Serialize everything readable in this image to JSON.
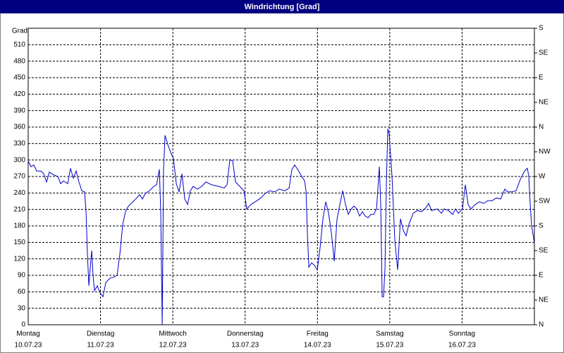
{
  "chart_data": {
    "type": "line",
    "title": "Windrichtung [Grad]",
    "y_label": "Grad",
    "x": [
      0,
      0.039,
      0.078,
      0.117,
      0.176,
      0.215,
      0.254,
      0.293,
      0.351,
      0.41,
      0.449,
      0.488,
      0.546,
      0.585,
      0.624,
      0.663,
      0.702,
      0.741,
      0.78,
      0.8,
      0.819,
      0.839,
      0.858,
      0.878,
      0.897,
      0.917,
      0.956,
      0.995,
      1.034,
      1.073,
      1.131,
      1.19,
      1.229,
      1.268,
      1.307,
      1.346,
      1.385,
      1.424,
      1.463,
      1.502,
      1.541,
      1.58,
      1.619,
      1.677,
      1.736,
      1.775,
      1.814,
      1.833,
      1.853,
      1.872,
      1.892,
      1.931,
      1.97,
      2.009,
      2.048,
      2.087,
      2.126,
      2.165,
      2.204,
      2.243,
      2.282,
      2.34,
      2.399,
      2.457,
      2.535,
      2.633,
      2.711,
      2.75,
      2.789,
      2.828,
      2.867,
      2.925,
      2.984,
      3.023,
      3.081,
      3.14,
      3.218,
      3.276,
      3.335,
      3.413,
      3.471,
      3.549,
      3.608,
      3.647,
      3.686,
      3.725,
      3.783,
      3.822,
      3.842,
      3.861,
      3.881,
      3.92,
      3.959,
      3.998,
      4.037,
      4.076,
      4.115,
      4.154,
      4.193,
      4.232,
      4.271,
      4.31,
      4.349,
      4.388,
      4.427,
      4.466,
      4.505,
      4.544,
      4.583,
      4.622,
      4.661,
      4.7,
      4.739,
      4.778,
      4.817,
      4.856,
      4.875,
      4.895,
      4.914,
      4.934,
      4.953,
      4.973,
      4.992,
      5.031,
      5.07,
      5.109,
      5.148,
      5.187,
      5.226,
      5.265,
      5.324,
      5.382,
      5.441,
      5.499,
      5.538,
      5.577,
      5.655,
      5.714,
      5.753,
      5.811,
      5.87,
      5.909,
      5.948,
      6.006,
      6.045,
      6.084,
      6.123,
      6.182,
      6.24,
      6.299,
      6.357,
      6.416,
      6.474,
      6.533,
      6.591,
      6.63,
      6.689,
      6.747,
      6.806,
      6.864,
      6.903,
      6.923,
      6.942,
      6.962,
      7
    ],
    "series": [
      {
        "name": "Windrichtung",
        "color": "#0000cc",
        "values": [
          298,
          288,
          291,
          280,
          280,
          275,
          260,
          278,
          273,
          270,
          257,
          262,
          257,
          285,
          267,
          280,
          260,
          244,
          242,
          206,
          129,
          71,
          103,
          135,
          90,
          62,
          71,
          58,
          51,
          77,
          85,
          87,
          90,
          129,
          183,
          206,
          216,
          221,
          226,
          231,
          237,
          229,
          239,
          244,
          252,
          255,
          283,
          206,
          0,
          283,
          345,
          328,
          314,
          302,
          257,
          242,
          275,
          229,
          219,
          244,
          252,
          247,
          252,
          260,
          255,
          252,
          249,
          255,
          301,
          298,
          260,
          252,
          244,
          211,
          219,
          224,
          231,
          239,
          244,
          242,
          247,
          244,
          249,
          283,
          291,
          283,
          270,
          262,
          244,
          167,
          105,
          113,
          108,
          100,
          141,
          193,
          224,
          203,
          167,
          116,
          193,
          219,
          244,
          219,
          201,
          211,
          216,
          211,
          198,
          206,
          198,
          195,
          201,
          201,
          211,
          288,
          219,
          51,
          51,
          103,
          257,
          357,
          347,
          270,
          154,
          100,
          193,
          172,
          162,
          183,
          203,
          208,
          206,
          213,
          221,
          208,
          211,
          203,
          211,
          208,
          201,
          211,
          203,
          211,
          255,
          219,
          211,
          219,
          224,
          221,
          226,
          226,
          231,
          229,
          247,
          242,
          242,
          244,
          265,
          280,
          285,
          270,
          219,
          180,
          149
        ]
      }
    ],
    "xlim": [
      0,
      7
    ],
    "xticks": [
      {
        "value": 0,
        "label": "Montag"
      },
      {
        "value": 1,
        "label": "Dienstag"
      },
      {
        "value": 2,
        "label": "Mittwoch"
      },
      {
        "value": 3,
        "label": "Donnerstag"
      },
      {
        "value": 4,
        "label": "Freitag"
      },
      {
        "value": 5,
        "label": "Samstag"
      },
      {
        "value": 6,
        "label": "Sonntag"
      }
    ],
    "xtick_dates": [
      "10.07.23",
      "11.07.23",
      "12.07.23",
      "13.07.23",
      "14.07.23",
      "15.07.23",
      "16.07.23"
    ],
    "ylim": [
      0,
      540
    ],
    "yticks": [
      0,
      30,
      60,
      90,
      120,
      150,
      180,
      210,
      240,
      270,
      300,
      330,
      360,
      390,
      420,
      450,
      480,
      510
    ],
    "y2lim": [
      0,
      540
    ],
    "y2ticks": [
      {
        "value": 0,
        "label": "N"
      },
      {
        "value": 45,
        "label": "NE"
      },
      {
        "value": 90,
        "label": "E"
      },
      {
        "value": 135,
        "label": "SE"
      },
      {
        "value": 180,
        "label": "S"
      },
      {
        "value": 225,
        "label": "SW"
      },
      {
        "value": 270,
        "label": "W"
      },
      {
        "value": 315,
        "label": "NW"
      },
      {
        "value": 360,
        "label": "N"
      },
      {
        "value": 405,
        "label": "NE"
      },
      {
        "value": 450,
        "label": "E"
      },
      {
        "value": 495,
        "label": "SE"
      },
      {
        "value": 540,
        "label": "S"
      }
    ],
    "grid": true
  }
}
